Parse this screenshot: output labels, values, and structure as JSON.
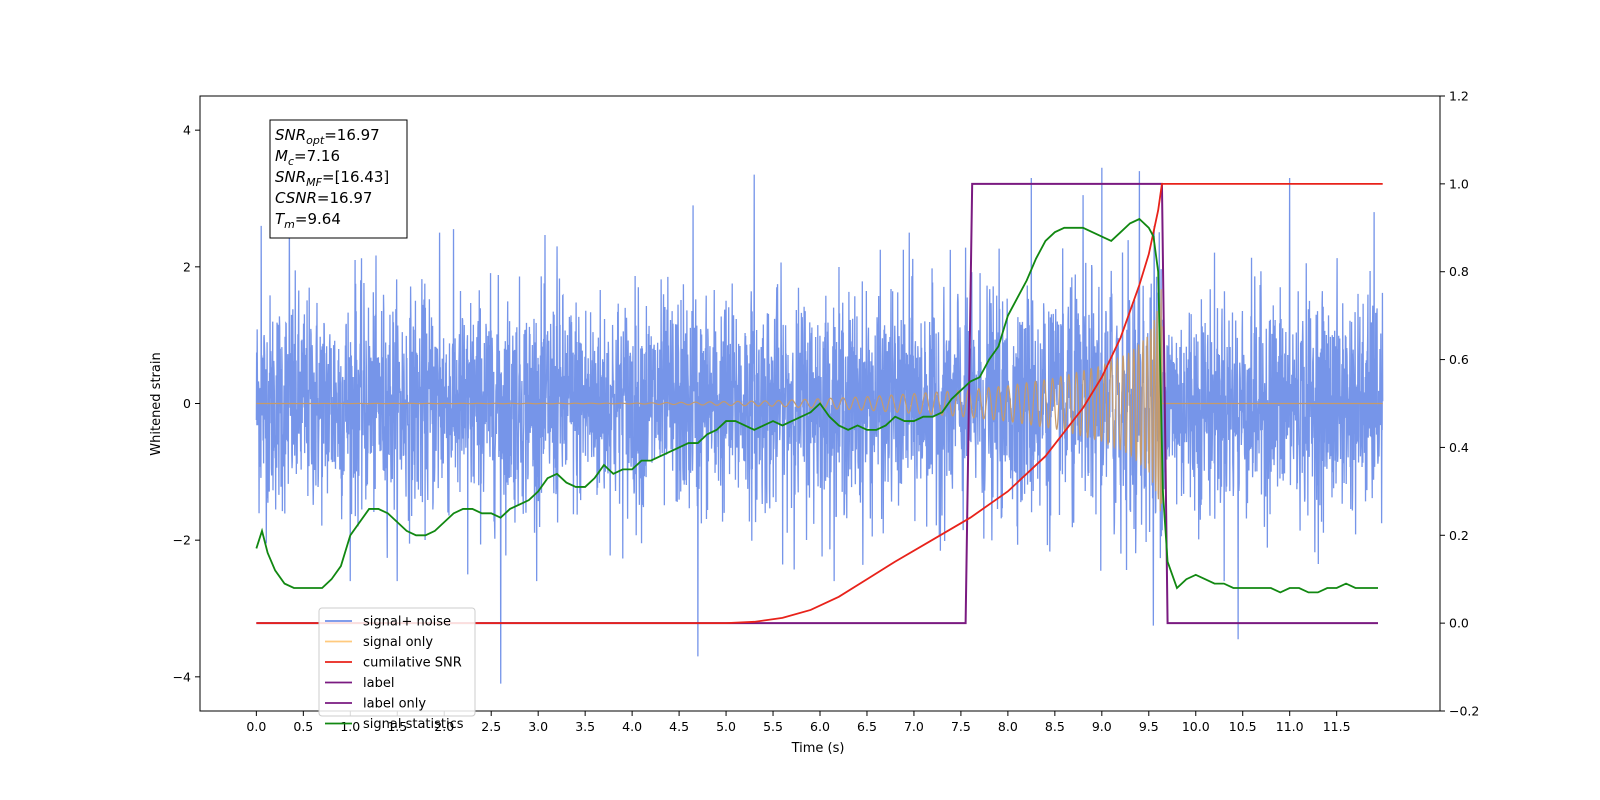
{
  "chart_data": {
    "type": "line",
    "title": "",
    "xlabel": "Time (s)",
    "ylabel": "Whitened strain",
    "ylabel_right": "",
    "xlim": [
      -0.6,
      12.6
    ],
    "ylim": [
      -4.5,
      4.5
    ],
    "ylim_right": [
      -0.2,
      1.2
    ],
    "grid": false,
    "legend_position": "lower-left",
    "x_ticks": [
      0.0,
      0.5,
      1.0,
      1.5,
      2.0,
      2.5,
      3.0,
      3.5,
      4.0,
      4.5,
      5.0,
      5.5,
      6.0,
      6.5,
      7.0,
      7.5,
      8.0,
      8.5,
      9.0,
      9.5,
      10.0,
      10.5,
      11.0,
      11.5
    ],
    "x_tick_labels": [
      "0.0",
      "0.5",
      "1.0",
      "1.5",
      "2.0",
      "2.5",
      "3.0",
      "3.5",
      "4.0",
      "4.5",
      "5.0",
      "5.5",
      "6.0",
      "6.5",
      "7.0",
      "7.5",
      "8.0",
      "8.5",
      "9.0",
      "9.5",
      "10.0",
      "10.5",
      "11.0",
      "11.5"
    ],
    "y_ticks": [
      -4,
      -2,
      0,
      2,
      4
    ],
    "y_tick_labels": [
      "−4",
      "−2",
      "0",
      "2",
      "4"
    ],
    "y_right_ticks": [
      -0.2,
      0.0,
      0.2,
      0.4,
      0.6,
      0.8,
      1.0,
      1.2
    ],
    "y_right_tick_labels": [
      "−0.2",
      "0.0",
      "0.2",
      "0.4",
      "0.6",
      "0.8",
      "1.0",
      "1.2"
    ],
    "annotation": {
      "lines": [
        {
          "base": "SNR",
          "sub": "opt",
          "rest": "=16.97"
        },
        {
          "base": "M",
          "sub": "c",
          "rest": "=7.16"
        },
        {
          "base": "SNR",
          "sub": "MF",
          "rest": "=[16.43]"
        },
        {
          "base": "CSNR",
          "sub": "",
          "rest": "=16.97"
        },
        {
          "base": "T",
          "sub": "m",
          "rest": "=9.64"
        }
      ]
    },
    "series": [
      {
        "name": "signal+ noise",
        "axis": "left",
        "color": "#6f8fe8",
        "style": "noise band",
        "x_range": [
          0.0,
          11.99
        ],
        "approx_amplitude": 1.2,
        "peaks": [
          {
            "x": 0.05,
            "y": 2.6
          },
          {
            "x": 0.35,
            "y": 2.7
          },
          {
            "x": 1.05,
            "y": 2.1
          },
          {
            "x": 1.95,
            "y": 2.5
          },
          {
            "x": 2.25,
            "y": -2.5
          },
          {
            "x": 2.6,
            "y": -4.1
          },
          {
            "x": 3.2,
            "y": 2.3
          },
          {
            "x": 4.65,
            "y": 2.9
          },
          {
            "x": 4.7,
            "y": -3.7
          },
          {
            "x": 5.3,
            "y": 3.35
          },
          {
            "x": 6.95,
            "y": 2.5
          },
          {
            "x": 8.25,
            "y": 3.3
          },
          {
            "x": 8.8,
            "y": 3.05
          },
          {
            "x": 9.0,
            "y": 3.45
          },
          {
            "x": 9.4,
            "y": 3.4
          },
          {
            "x": 9.55,
            "y": -3.25
          },
          {
            "x": 10.45,
            "y": -3.45
          },
          {
            "x": 11.0,
            "y": 3.3
          },
          {
            "x": 11.9,
            "y": 2.8
          }
        ]
      },
      {
        "name": "signal only",
        "axis": "left",
        "color": "#ffb347",
        "style": "chirp",
        "x_range": [
          0.0,
          11.99
        ],
        "merger_time": 9.64,
        "envelope": {
          "x": [
            0.0,
            4.0,
            5.5,
            6.5,
            7.5,
            8.0,
            8.5,
            9.0,
            9.3,
            9.5,
            9.6,
            9.64
          ],
          "y": [
            0.0,
            0.005,
            0.04,
            0.1,
            0.19,
            0.26,
            0.37,
            0.55,
            0.75,
            1.0,
            1.4,
            1.75
          ]
        }
      },
      {
        "name": "cumilative SNR",
        "axis": "right",
        "color": "#e8221a",
        "x": [
          0.0,
          5.0,
          5.3,
          5.6,
          5.9,
          6.2,
          6.5,
          6.8,
          7.2,
          7.6,
          8.0,
          8.4,
          8.8,
          9.0,
          9.2,
          9.4,
          9.5,
          9.6,
          9.64,
          9.65,
          11.99
        ],
        "y": [
          0.0,
          0.0,
          0.003,
          0.012,
          0.03,
          0.06,
          0.1,
          0.14,
          0.19,
          0.24,
          0.3,
          0.38,
          0.49,
          0.56,
          0.65,
          0.77,
          0.84,
          0.94,
          1.0,
          1.0,
          1.0
        ]
      },
      {
        "name": "label",
        "axis": "right",
        "color": "#7a1a80",
        "x": [
          0.0,
          7.55,
          7.62,
          9.64,
          9.7,
          11.94
        ],
        "y": [
          0.0,
          0.0,
          1.0,
          1.0,
          0.0,
          0.0
        ]
      },
      {
        "name": "label only",
        "axis": "right",
        "color": "#7a1a80",
        "x": [],
        "y": []
      },
      {
        "name": "signal statistics",
        "axis": "right",
        "color": "#118811",
        "x": [
          0.0,
          0.06,
          0.12,
          0.2,
          0.3,
          0.4,
          0.5,
          0.6,
          0.7,
          0.8,
          0.9,
          1.0,
          1.1,
          1.2,
          1.3,
          1.4,
          1.5,
          1.6,
          1.7,
          1.8,
          1.9,
          2.0,
          2.1,
          2.2,
          2.3,
          2.4,
          2.5,
          2.6,
          2.7,
          2.8,
          2.9,
          3.0,
          3.1,
          3.2,
          3.3,
          3.4,
          3.5,
          3.6,
          3.7,
          3.8,
          3.9,
          4.0,
          4.1,
          4.2,
          4.3,
          4.4,
          4.5,
          4.6,
          4.7,
          4.8,
          4.9,
          5.0,
          5.1,
          5.2,
          5.3,
          5.4,
          5.5,
          5.6,
          5.7,
          5.8,
          5.9,
          6.0,
          6.1,
          6.2,
          6.3,
          6.4,
          6.5,
          6.6,
          6.7,
          6.8,
          6.9,
          7.0,
          7.1,
          7.2,
          7.3,
          7.4,
          7.5,
          7.6,
          7.7,
          7.8,
          7.9,
          8.0,
          8.1,
          8.2,
          8.3,
          8.4,
          8.5,
          8.6,
          8.7,
          8.8,
          8.9,
          9.0,
          9.1,
          9.2,
          9.3,
          9.4,
          9.5,
          9.55,
          9.6,
          9.65,
          9.7,
          9.8,
          9.9,
          10.0,
          10.1,
          10.2,
          10.3,
          10.4,
          10.5,
          10.6,
          10.7,
          10.8,
          10.9,
          11.0,
          11.1,
          11.2,
          11.3,
          11.4,
          11.5,
          11.6,
          11.7,
          11.8,
          11.9,
          11.94
        ],
        "y": [
          0.17,
          0.21,
          0.16,
          0.12,
          0.09,
          0.08,
          0.08,
          0.08,
          0.08,
          0.1,
          0.13,
          0.2,
          0.23,
          0.26,
          0.26,
          0.25,
          0.23,
          0.21,
          0.2,
          0.2,
          0.21,
          0.23,
          0.25,
          0.26,
          0.26,
          0.25,
          0.25,
          0.24,
          0.26,
          0.27,
          0.28,
          0.3,
          0.33,
          0.34,
          0.32,
          0.31,
          0.31,
          0.33,
          0.36,
          0.34,
          0.35,
          0.35,
          0.37,
          0.37,
          0.38,
          0.39,
          0.4,
          0.41,
          0.41,
          0.43,
          0.44,
          0.46,
          0.46,
          0.45,
          0.44,
          0.45,
          0.46,
          0.45,
          0.46,
          0.47,
          0.48,
          0.5,
          0.47,
          0.45,
          0.44,
          0.45,
          0.44,
          0.44,
          0.45,
          0.47,
          0.46,
          0.46,
          0.47,
          0.47,
          0.48,
          0.51,
          0.53,
          0.55,
          0.56,
          0.6,
          0.63,
          0.7,
          0.74,
          0.78,
          0.83,
          0.87,
          0.89,
          0.9,
          0.9,
          0.9,
          0.89,
          0.88,
          0.87,
          0.89,
          0.91,
          0.92,
          0.9,
          0.88,
          0.8,
          0.3,
          0.14,
          0.08,
          0.1,
          0.11,
          0.1,
          0.09,
          0.09,
          0.08,
          0.08,
          0.08,
          0.08,
          0.08,
          0.07,
          0.08,
          0.08,
          0.07,
          0.07,
          0.08,
          0.08,
          0.09,
          0.08,
          0.08,
          0.08,
          0.08
        ]
      }
    ]
  }
}
